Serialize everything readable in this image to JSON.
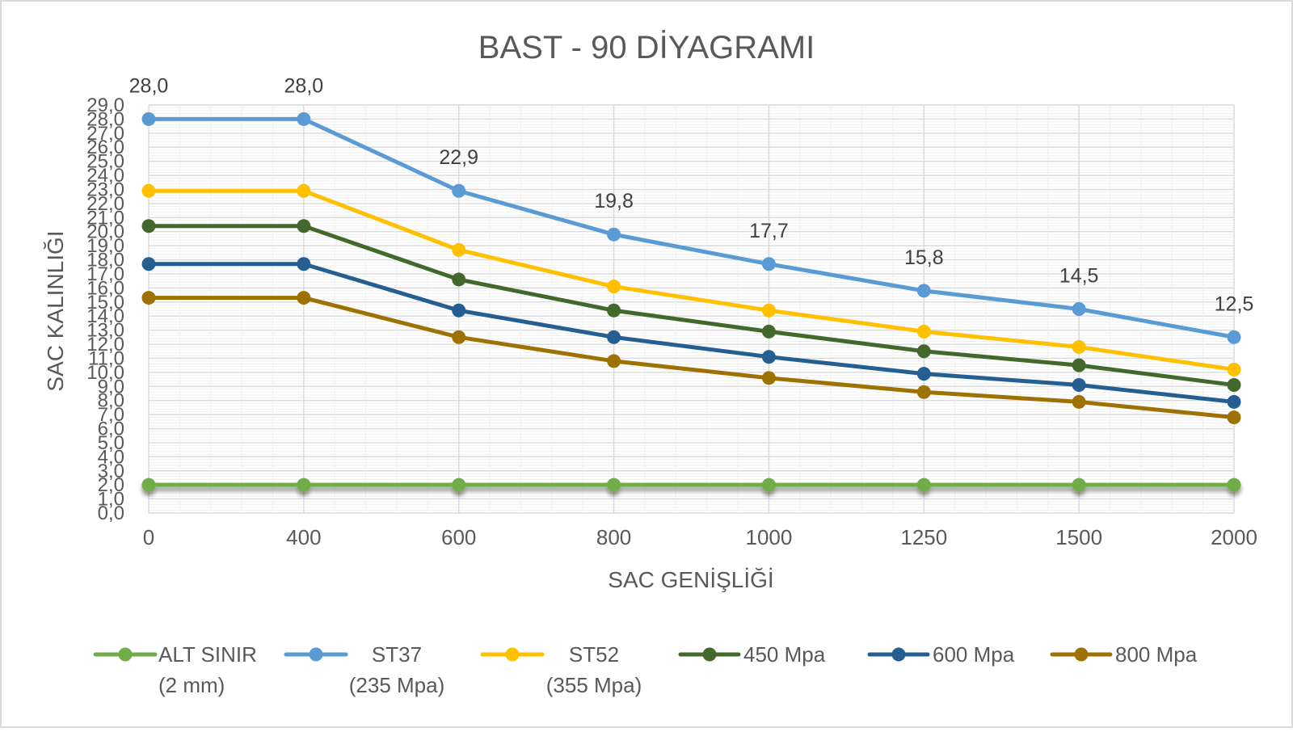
{
  "chart_data": {
    "type": "line",
    "title": "BAST - 90 DİYAGRAMI",
    "xlabel": "SAC GENİŞLİĞİ",
    "ylabel": "SAC KALINLIĞI",
    "categories": [
      "0",
      "400",
      "600",
      "800",
      "1000",
      "1250",
      "1500",
      "2000"
    ],
    "ylim": [
      0,
      29
    ],
    "y_ticks": [
      "0,0",
      "1,0",
      "2,0",
      "3,0",
      "4,0",
      "5,0",
      "6,0",
      "7,0",
      "8,0",
      "9,0",
      "10,0",
      "11,0",
      "12,0",
      "13,0",
      "14,0",
      "15,0",
      "16,0",
      "17,0",
      "18,0",
      "19,0",
      "20,0",
      "21,0",
      "22,0",
      "23,0",
      "24,0",
      "25,0",
      "26,0",
      "27,0",
      "28,0",
      "29,0"
    ],
    "grid": true,
    "legend_position": "bottom",
    "series": [
      {
        "name": "ALT SINIR",
        "name_line2": "(2 mm)",
        "color": "#70AD47",
        "values": [
          2.0,
          2.0,
          2.0,
          2.0,
          2.0,
          2.0,
          2.0,
          2.0
        ]
      },
      {
        "name": "ST37",
        "name_line2": "(235 Mpa)",
        "color": "#5B9BD5",
        "values": [
          28.0,
          28.0,
          22.9,
          19.8,
          17.7,
          15.8,
          14.5,
          12.5
        ],
        "data_labels": [
          "28,0",
          "28,0",
          "22,9",
          "19,8",
          "17,7",
          "15,8",
          "14,5",
          "12,5"
        ]
      },
      {
        "name": "ST52",
        "name_line2": "(355 Mpa)",
        "color": "#FFC000",
        "values": [
          22.9,
          22.9,
          18.7,
          16.1,
          14.4,
          12.9,
          11.8,
          10.2
        ]
      },
      {
        "name": "450  Mpa",
        "name_line2": "",
        "color": "#43682B",
        "values": [
          20.4,
          20.4,
          16.6,
          14.4,
          12.9,
          11.5,
          10.5,
          9.1
        ]
      },
      {
        "name": "600 Mpa",
        "name_line2": "",
        "color": "#255E91",
        "values": [
          17.7,
          17.7,
          14.4,
          12.5,
          11.1,
          9.9,
          9.1,
          7.9
        ]
      },
      {
        "name": "800 Mpa",
        "name_line2": "",
        "color": "#9E7202",
        "values": [
          15.3,
          15.3,
          12.5,
          10.8,
          9.6,
          8.6,
          7.9,
          6.8
        ]
      }
    ]
  }
}
